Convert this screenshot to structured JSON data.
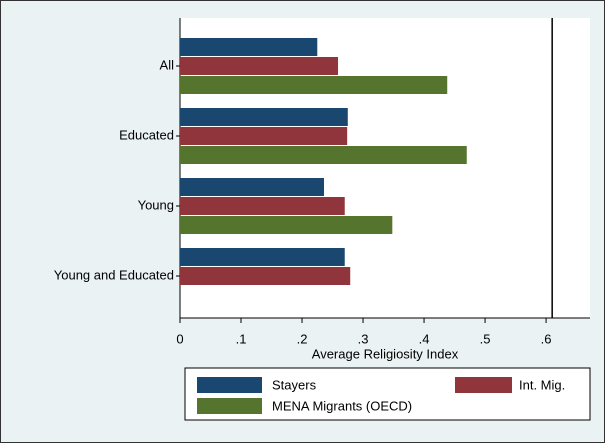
{
  "chart_data": {
    "type": "bar",
    "orientation": "horizontal",
    "x_label": "Average Religiosity Index",
    "categories": [
      "All",
      "Educated",
      "Young",
      "Young and Educated"
    ],
    "series": [
      {
        "name": "Stayers",
        "color": "#1a476f",
        "values": [
          0.225,
          0.275,
          0.236,
          0.27
        ]
      },
      {
        "name": "Int. Mig.",
        "color": "#90353b",
        "values": [
          0.259,
          0.274,
          0.27,
          0.279
        ]
      },
      {
        "name": "MENA Migrants (OECD)",
        "color": "#55752f",
        "values": [
          0.438,
          0.47,
          0.348,
          null
        ]
      }
    ],
    "xlim": [
      0,
      0.672
    ],
    "xticks": [
      0,
      {
        "value": 0.1,
        "label": ".1"
      },
      {
        "value": 0.2,
        "label": ".2"
      },
      {
        "value": 0.3,
        "label": ".3"
      },
      {
        "value": 0.4,
        "label": ".4"
      },
      {
        "value": 0.5,
        "label": ".5"
      },
      {
        "value": 0.6,
        "label": ".6"
      }
    ],
    "vline": 0.61,
    "grid": false
  }
}
